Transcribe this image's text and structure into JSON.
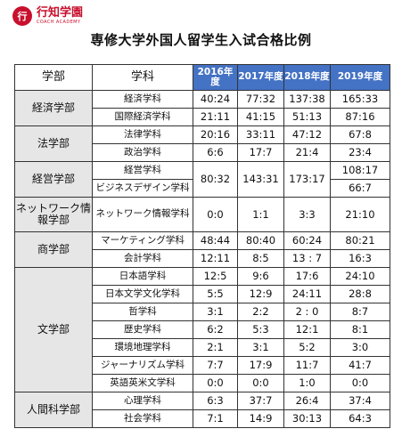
{
  "logo": {
    "mark": "行",
    "name": "行知学園",
    "sub": "COACH ACADEMY"
  },
  "title": "専修大学外国人留学生入试合格比例",
  "table": {
    "headers": {
      "dept": "学部",
      "subject": "学科",
      "years": [
        "2016年度",
        "2017年度",
        "2018年度",
        "2019年度"
      ]
    },
    "rows": [
      {
        "dept": "経済学部",
        "dept_span": 2,
        "subject": "経済学科",
        "values": [
          "40:24",
          "77:32",
          "137:38",
          "165:33"
        ]
      },
      {
        "subject": "国際経済学科",
        "values": [
          "21:11",
          "41:15",
          "51:13",
          "87:16"
        ]
      },
      {
        "dept": "法学部",
        "dept_span": 2,
        "subject": "法律学科",
        "values": [
          "20:16",
          "33:11",
          "47:12",
          "67:8"
        ]
      },
      {
        "subject": "政治学科",
        "values": [
          "6:6",
          "17:7",
          "21:4",
          "23:4"
        ]
      },
      {
        "dept": "経営学部",
        "dept_span": 2,
        "subject": "経営学科",
        "merged": [
          "80:32",
          "143:31",
          "173:17"
        ],
        "values": [
          "108:17"
        ]
      },
      {
        "subject": "ビジネスデザイン学科",
        "values": [
          "66:7"
        ]
      },
      {
        "dept": "ネットワーク情報学部",
        "dept_span": 1,
        "subject": "ネットワーク情報学科",
        "values": [
          "0:0",
          "1:1",
          "3:3",
          "21:10"
        ]
      },
      {
        "dept": "商学部",
        "dept_span": 2,
        "subject": "マーケティング学科",
        "values": [
          "48:44",
          "80:40",
          "60:24",
          "80:21"
        ]
      },
      {
        "subject": "会計学科",
        "values": [
          "12:11",
          "8:5",
          "13 : 7",
          "16:3"
        ]
      },
      {
        "dept": "文学部",
        "dept_span": 7,
        "subject": "日本語学科",
        "values": [
          "12:5",
          "9:6",
          "17:6",
          "24:10"
        ]
      },
      {
        "subject": "日本文学文化学科",
        "values": [
          "5:5",
          "12:9",
          "24:11",
          "28:8"
        ]
      },
      {
        "subject": "哲学科",
        "values": [
          "3:1",
          "2:2",
          "2 : 0",
          "8:7"
        ]
      },
      {
        "subject": "歴史学科",
        "values": [
          "6:2",
          "5:3",
          "12:1",
          "8:1"
        ]
      },
      {
        "subject": "環境地理学科",
        "values": [
          "2:1",
          "3:1",
          "5:2",
          "3:0"
        ]
      },
      {
        "subject": "ジャーナリズム学科",
        "values": [
          "7:7",
          "17:9",
          "11:7",
          "41:7"
        ]
      },
      {
        "subject": "英語英米文学科",
        "values": [
          "0:0",
          "0:0",
          "1:0",
          "0:0"
        ]
      },
      {
        "dept": "人間科学部",
        "dept_span": 2,
        "subject": "心理学科",
        "values": [
          "6:3",
          "37:7",
          "26:4",
          "37:4"
        ]
      },
      {
        "subject": "社会学科",
        "values": [
          "7:1",
          "14:9",
          "30:13",
          "64:3"
        ]
      }
    ]
  }
}
